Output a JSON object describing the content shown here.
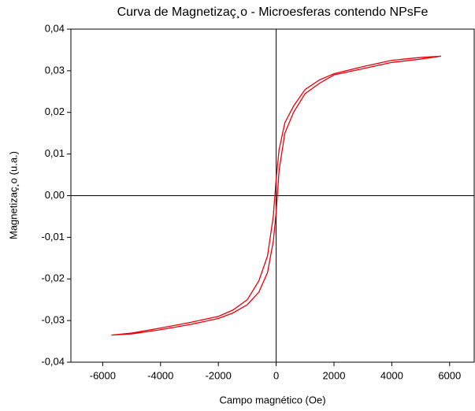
{
  "chart_data": {
    "type": "line",
    "title": "Curva de Magnetizaç¸o - Microesferas contendo NPsFe",
    "xlabel": "Campo magnético (Oe)",
    "ylabel": "Magnetizaç¸o (u.a.)",
    "x": [
      -5700,
      -5000,
      -4000,
      -3000,
      -2000,
      -1500,
      -1000,
      -600,
      -300,
      -100,
      0,
      100,
      300,
      600,
      1000,
      1500,
      2000,
      3000,
      4000,
      5000,
      5700,
      5000,
      4000,
      3000,
      2000,
      1500,
      1000,
      600,
      300,
      100,
      0,
      -100,
      -300,
      -600,
      -1000,
      -1500,
      -2000,
      -3000,
      -4000,
      -5000,
      -5700
    ],
    "series": [
      {
        "color": "#e8000b",
        "values": [
          -0.0335,
          -0.0332,
          -0.0322,
          -0.031,
          -0.0295,
          -0.0282,
          -0.0262,
          -0.0232,
          -0.0185,
          -0.011,
          -0.004,
          0.006,
          0.015,
          0.02,
          0.0245,
          0.027,
          0.029,
          0.0305,
          0.032,
          0.0328,
          0.0335,
          0.0332,
          0.0325,
          0.031,
          0.0293,
          0.0278,
          0.0255,
          0.0215,
          0.0175,
          0.011,
          0.004,
          -0.005,
          -0.0145,
          -0.0205,
          -0.025,
          -0.0275,
          -0.029,
          -0.0305,
          -0.0318,
          -0.033,
          -0.0335
        ]
      }
    ],
    "xlim": [
      -7100,
      6850
    ],
    "xticks": [
      -6000,
      -4000,
      -2000,
      0,
      2000,
      4000,
      6000
    ],
    "ylim": [
      -0.04,
      0.04
    ],
    "yticks": [
      {
        "value": -0.04,
        "label": "-0,04"
      },
      {
        "value": -0.03,
        "label": "-0,03"
      },
      {
        "value": -0.02,
        "label": "-0,02"
      },
      {
        "value": -0.01,
        "label": "-0,01"
      },
      {
        "value": 0,
        "label": "0,00"
      },
      {
        "value": 0.01,
        "label": "0,01"
      },
      {
        "value": 0.02,
        "label": "0,02"
      },
      {
        "value": 0.03,
        "label": "0,03"
      },
      {
        "value": 0.04,
        "label": "0,04"
      }
    ],
    "grid": false
  }
}
